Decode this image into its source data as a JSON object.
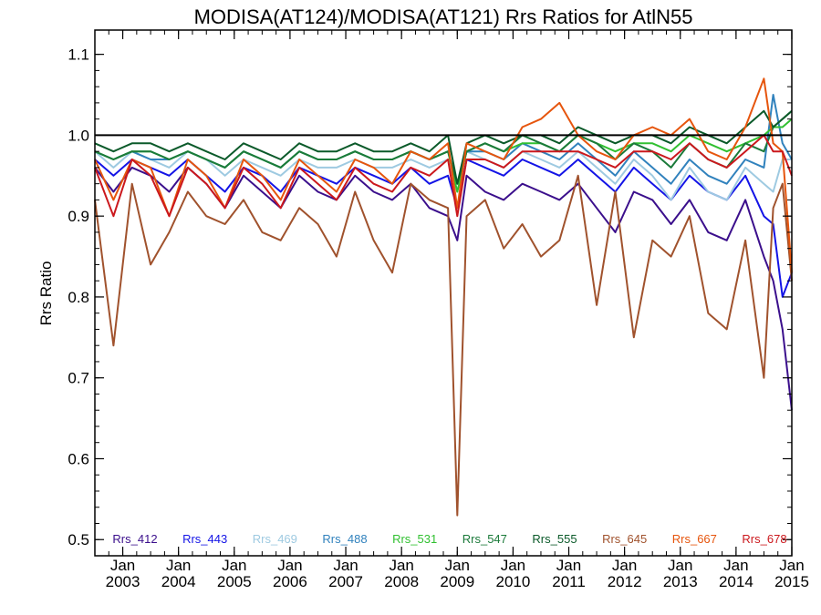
{
  "chart_data": {
    "type": "line",
    "title": "MODISA(AT124)/MODISA(AT121)  Rrs Ratios for AtlN55",
    "xlabel": "",
    "ylabel": "Rrs Ratio",
    "ylim": [
      0.48,
      1.13
    ],
    "xlim": [
      "2002-07",
      "2015-01"
    ],
    "grid": false,
    "reference_line": 1.0,
    "legend_position": "bottom",
    "x_ticks": [
      {
        "month": "Jan",
        "year": "2003",
        "date": "2003-01"
      },
      {
        "month": "Jan",
        "year": "2004",
        "date": "2004-01"
      },
      {
        "month": "Jan",
        "year": "2005",
        "date": "2005-01"
      },
      {
        "month": "Jan",
        "year": "2006",
        "date": "2006-01"
      },
      {
        "month": "Jan",
        "year": "2007",
        "date": "2007-01"
      },
      {
        "month": "Jan",
        "year": "2008",
        "date": "2008-01"
      },
      {
        "month": "Jan",
        "year": "2009",
        "date": "2009-01"
      },
      {
        "month": "Jan",
        "year": "2010",
        "date": "2010-01"
      },
      {
        "month": "Jan",
        "year": "2011",
        "date": "2011-01"
      },
      {
        "month": "Jan",
        "year": "2012",
        "date": "2012-01"
      },
      {
        "month": "Jan",
        "year": "2013",
        "date": "2013-01"
      },
      {
        "month": "Jan",
        "year": "2014",
        "date": "2014-01"
      },
      {
        "month": "Jan",
        "year": "2015",
        "date": "2015-01"
      }
    ],
    "y_ticks": [
      "0.5",
      "0.6",
      "0.7",
      "0.8",
      "0.9",
      "1.0",
      "1.1"
    ],
    "x": [
      "2002-07",
      "2002-11",
      "2003-03",
      "2003-07",
      "2003-11",
      "2004-03",
      "2004-07",
      "2004-11",
      "2005-03",
      "2005-07",
      "2005-11",
      "2006-03",
      "2006-07",
      "2006-11",
      "2007-03",
      "2007-07",
      "2007-11",
      "2008-03",
      "2008-07",
      "2008-11",
      "2009-01",
      "2009-03",
      "2009-07",
      "2009-11",
      "2010-03",
      "2010-07",
      "2010-11",
      "2011-03",
      "2011-07",
      "2011-11",
      "2012-03",
      "2012-07",
      "2012-11",
      "2013-03",
      "2013-07",
      "2013-11",
      "2014-03",
      "2014-07",
      "2014-09",
      "2014-11",
      "2015-01"
    ],
    "series": [
      {
        "name": "Rrs_412",
        "color": "#3b0f8c",
        "values": [
          0.96,
          0.93,
          0.96,
          0.95,
          0.93,
          0.96,
          0.94,
          0.91,
          0.95,
          0.93,
          0.91,
          0.95,
          0.93,
          0.92,
          0.95,
          0.93,
          0.92,
          0.94,
          0.91,
          0.9,
          0.87,
          0.95,
          0.93,
          0.92,
          0.94,
          0.93,
          0.92,
          0.94,
          0.91,
          0.88,
          0.93,
          0.92,
          0.89,
          0.92,
          0.88,
          0.87,
          0.92,
          0.85,
          0.82,
          0.76,
          0.66
        ]
      },
      {
        "name": "Rrs_443",
        "color": "#1414e6",
        "values": [
          0.97,
          0.95,
          0.97,
          0.96,
          0.95,
          0.97,
          0.95,
          0.93,
          0.96,
          0.95,
          0.93,
          0.96,
          0.95,
          0.94,
          0.96,
          0.95,
          0.94,
          0.96,
          0.94,
          0.95,
          0.91,
          0.97,
          0.96,
          0.95,
          0.97,
          0.96,
          0.95,
          0.97,
          0.95,
          0.93,
          0.96,
          0.94,
          0.92,
          0.95,
          0.93,
          0.92,
          0.95,
          0.9,
          0.89,
          0.8,
          0.83
        ]
      },
      {
        "name": "Rrs_469",
        "color": "#9ecae1",
        "values": [
          0.98,
          0.96,
          0.98,
          0.97,
          0.96,
          0.98,
          0.97,
          0.95,
          0.97,
          0.96,
          0.95,
          0.97,
          0.96,
          0.96,
          0.97,
          0.96,
          0.96,
          0.97,
          0.96,
          0.97,
          0.93,
          0.98,
          0.97,
          0.96,
          0.98,
          0.97,
          0.96,
          0.98,
          0.96,
          0.94,
          0.97,
          0.95,
          0.92,
          0.96,
          0.93,
          0.92,
          0.96,
          0.94,
          0.93,
          0.97,
          0.97
        ]
      },
      {
        "name": "Rrs_488",
        "color": "#3182bd",
        "values": [
          0.98,
          0.97,
          0.98,
          0.97,
          0.97,
          0.98,
          0.97,
          0.96,
          0.98,
          0.97,
          0.96,
          0.98,
          0.97,
          0.97,
          0.98,
          0.97,
          0.97,
          0.98,
          0.97,
          0.98,
          0.94,
          0.98,
          0.98,
          0.97,
          0.99,
          0.98,
          0.97,
          0.99,
          0.97,
          0.95,
          0.98,
          0.96,
          0.94,
          0.97,
          0.95,
          0.94,
          0.97,
          0.96,
          1.05,
          0.99,
          0.97
        ]
      },
      {
        "name": "Rrs_531",
        "color": "#31c031",
        "values": [
          0.98,
          0.97,
          0.98,
          0.98,
          0.97,
          0.98,
          0.97,
          0.96,
          0.98,
          0.97,
          0.96,
          0.98,
          0.97,
          0.97,
          0.98,
          0.97,
          0.97,
          0.98,
          0.97,
          0.98,
          0.93,
          0.98,
          0.99,
          0.98,
          0.99,
          0.99,
          0.98,
          1.0,
          0.99,
          0.98,
          0.99,
          0.99,
          0.98,
          1.0,
          0.99,
          0.98,
          0.99,
          1.0,
          1.01,
          1.01,
          1.02
        ]
      },
      {
        "name": "Rrs_547",
        "color": "#1b7a3a",
        "values": [
          0.98,
          0.97,
          0.98,
          0.98,
          0.97,
          0.98,
          0.97,
          0.96,
          0.98,
          0.97,
          0.96,
          0.98,
          0.97,
          0.97,
          0.98,
          0.97,
          0.97,
          0.98,
          0.97,
          0.98,
          0.94,
          0.98,
          0.99,
          0.98,
          1.0,
          0.99,
          0.98,
          1.0,
          0.99,
          0.97,
          0.99,
          0.98,
          0.96,
          0.99,
          0.97,
          0.96,
          0.99,
          0.98,
          1.01,
          1.02,
          1.03
        ]
      },
      {
        "name": "Rrs_555",
        "color": "#0b5a2a",
        "values": [
          0.99,
          0.98,
          0.99,
          0.99,
          0.98,
          0.99,
          0.98,
          0.97,
          0.99,
          0.98,
          0.97,
          0.99,
          0.98,
          0.98,
          0.99,
          0.98,
          0.98,
          0.99,
          0.98,
          1.0,
          0.94,
          0.99,
          1.0,
          0.99,
          1.0,
          1.0,
          0.99,
          1.01,
          1.0,
          0.99,
          1.0,
          1.0,
          0.99,
          1.01,
          1.0,
          0.99,
          1.01,
          1.03,
          1.01,
          1.02,
          1.03
        ]
      },
      {
        "name": "Rrs_645",
        "color": "#a0522d",
        "values": [
          0.92,
          0.74,
          0.94,
          0.84,
          0.88,
          0.93,
          0.9,
          0.89,
          0.92,
          0.88,
          0.87,
          0.91,
          0.89,
          0.85,
          0.93,
          0.87,
          0.83,
          0.94,
          0.92,
          0.91,
          0.53,
          0.9,
          0.92,
          0.86,
          0.89,
          0.85,
          0.87,
          0.95,
          0.79,
          0.93,
          0.75,
          0.87,
          0.85,
          0.9,
          0.78,
          0.76,
          0.87,
          0.7,
          0.91,
          0.94,
          0.82
        ]
      },
      {
        "name": "Rrs_667",
        "color": "#e6550d",
        "values": [
          0.97,
          0.92,
          0.97,
          0.96,
          0.9,
          0.97,
          0.95,
          0.91,
          0.97,
          0.95,
          0.92,
          0.97,
          0.95,
          0.93,
          0.97,
          0.96,
          0.94,
          0.98,
          0.97,
          0.99,
          0.91,
          0.99,
          0.98,
          0.97,
          1.01,
          1.02,
          1.04,
          1.0,
          0.98,
          0.97,
          1.0,
          1.01,
          1.0,
          1.02,
          0.98,
          0.97,
          1.01,
          1.07,
          0.99,
          0.98,
          0.83
        ]
      },
      {
        "name": "Rrs_678",
        "color": "#cb181d",
        "values": [
          0.96,
          0.9,
          0.97,
          0.95,
          0.9,
          0.96,
          0.94,
          0.91,
          0.96,
          0.94,
          0.91,
          0.96,
          0.94,
          0.92,
          0.96,
          0.94,
          0.93,
          0.96,
          0.95,
          0.97,
          0.9,
          0.97,
          0.97,
          0.96,
          0.98,
          0.98,
          0.98,
          0.98,
          0.97,
          0.96,
          0.98,
          0.98,
          0.97,
          0.99,
          0.97,
          0.96,
          0.98,
          1.0,
          0.98,
          0.98,
          0.95
        ]
      }
    ]
  }
}
